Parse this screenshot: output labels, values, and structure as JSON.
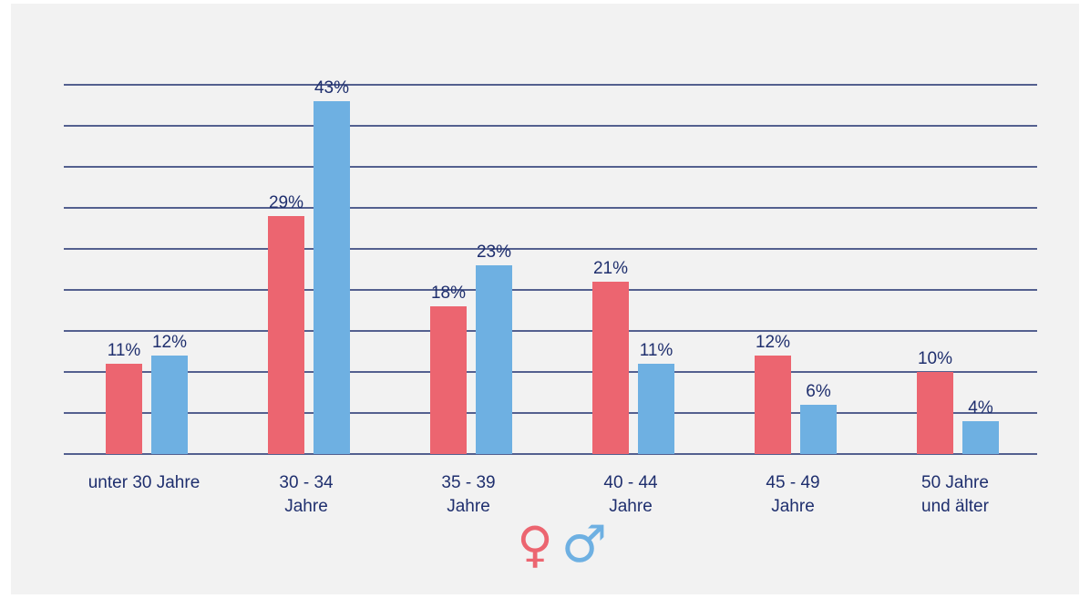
{
  "chart_data": {
    "type": "bar",
    "categories": [
      [
        "unter 30 Jahre"
      ],
      [
        "30 - 34",
        "Jahre"
      ],
      [
        "35 - 39",
        "Jahre"
      ],
      [
        "40 - 44",
        "Jahre"
      ],
      [
        "45 - 49",
        "Jahre"
      ],
      [
        "50 Jahre",
        "und älter"
      ]
    ],
    "series": [
      {
        "symbol": "♀",
        "color": "#ec6570",
        "values": [
          11,
          29,
          18,
          21,
          12,
          10
        ],
        "labels": [
          "11%",
          "29%",
          "18%",
          "21%",
          "12%",
          "10%"
        ]
      },
      {
        "symbol": "♂",
        "color": "#6eb0e2",
        "values": [
          12,
          43,
          23,
          11,
          6,
          4
        ],
        "labels": [
          "12%",
          "43%",
          "23%",
          "11%",
          "6%",
          "4%"
        ]
      }
    ],
    "ylim": [
      0,
      45
    ],
    "grid": true,
    "legend": "bottom-center",
    "grid_color": "#1f2f6e",
    "text_color": "#1f2f6e"
  }
}
